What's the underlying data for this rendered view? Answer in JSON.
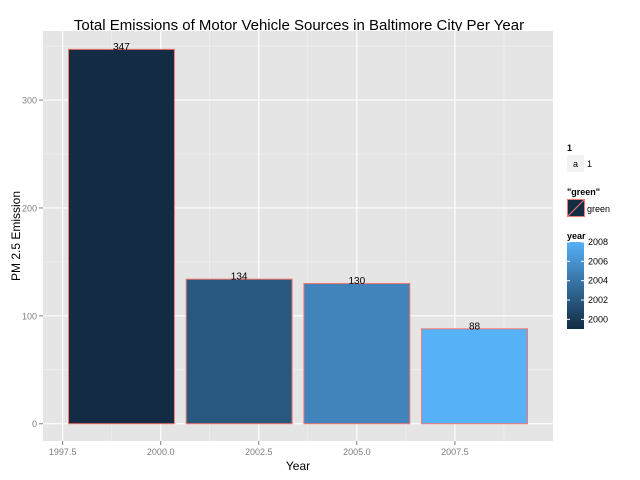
{
  "chart_data": {
    "type": "bar",
    "title": "Total Emissions of Motor Vehicle Sources in Baltimore City Per Year",
    "xlabel": "Year",
    "ylabel": "PM 2.5 Emission",
    "x": [
      1999,
      2002,
      2005,
      2008
    ],
    "values": [
      347,
      134,
      130,
      88
    ],
    "data_labels": [
      "347",
      "134",
      "130",
      "88"
    ],
    "xlim": [
      1997.0,
      2010.0
    ],
    "ylim": [
      -16,
      364
    ],
    "x_ticks": [
      1997.5,
      2000.0,
      2002.5,
      2005.0,
      2007.5
    ],
    "x_tick_labels": [
      "1997.5",
      "2000.0",
      "2002.5",
      "2005.0",
      "2007.5"
    ],
    "y_ticks": [
      0,
      100,
      200,
      300
    ],
    "y_tick_labels": [
      "0",
      "100",
      "200",
      "300"
    ],
    "bar_width_years": 2.7,
    "bar_outline_color": "#f8766d",
    "panel_background": "#e5e5e5",
    "grid": true,
    "grid_color": "#ffffff",
    "color_scale": {
      "low": "#132b43",
      "high": "#56b1f7",
      "min": 1999,
      "max": 2008
    },
    "legend_position": "right",
    "legends": {
      "alpha": {
        "title": "1",
        "key_text": "a",
        "label": "1"
      },
      "outline": {
        "title": "\"green\"",
        "label": "green",
        "color": "#f8766d"
      },
      "fill": {
        "title": "year",
        "breaks": [
          2000,
          2002,
          2004,
          2006,
          2008
        ],
        "labels": [
          "2000",
          "2002",
          "2004",
          "2006",
          "2008"
        ]
      }
    }
  }
}
